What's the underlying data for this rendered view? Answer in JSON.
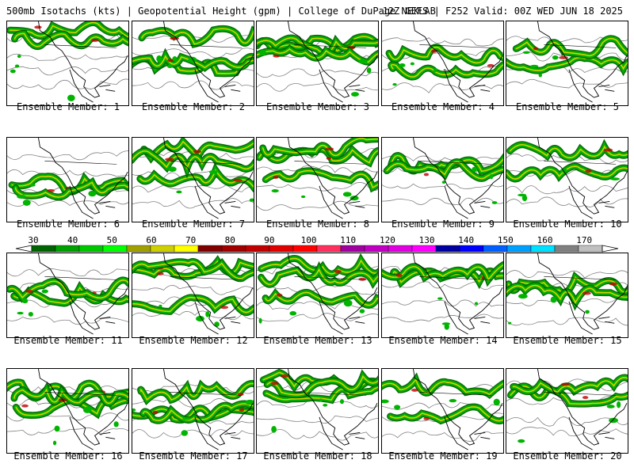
{
  "header": {
    "left": "500mb Isotachs (kts) | Geopotential Height (gpm) | College of DuPage NEXLAB",
    "right": "12Z GEFS | F252 Valid: 00Z WED JUN 18 2025"
  },
  "members": [
    {
      "caption": "Ensemble Member: 1"
    },
    {
      "caption": "Ensemble Member: 2"
    },
    {
      "caption": "Ensemble Member: 3"
    },
    {
      "caption": "Ensemble Member: 4"
    },
    {
      "caption": "Ensemble Member: 5"
    },
    {
      "caption": "Ensemble Member: 6"
    },
    {
      "caption": "Ensemble Member: 7"
    },
    {
      "caption": "Ensemble Member: 8"
    },
    {
      "caption": "Ensemble Member: 9"
    },
    {
      "caption": "Ensemble Member: 10"
    },
    {
      "caption": "Ensemble Member: 11"
    },
    {
      "caption": "Ensemble Member: 12"
    },
    {
      "caption": "Ensemble Member: 13"
    },
    {
      "caption": "Ensemble Member: 14"
    },
    {
      "caption": "Ensemble Member: 15"
    },
    {
      "caption": "Ensemble Member: 16"
    },
    {
      "caption": "Ensemble Member: 17"
    },
    {
      "caption": "Ensemble Member: 18"
    },
    {
      "caption": "Ensemble Member: 19"
    },
    {
      "caption": "Ensemble Member: 20"
    }
  ],
  "colorbar": {
    "labels": [
      "30",
      "40",
      "50",
      "60",
      "70",
      "80",
      "90",
      "100",
      "110",
      "120",
      "130",
      "140",
      "150",
      "160",
      "170"
    ],
    "colors": [
      "#006400",
      "#00a000",
      "#00c800",
      "#00ff00",
      "#a0a000",
      "#d0d000",
      "#ffff00",
      "#800000",
      "#a00000",
      "#c00000",
      "#e00000",
      "#ff0000",
      "#ff3060",
      "#a000a0",
      "#c000c0",
      "#e000e0",
      "#ff00ff",
      "#0000a0",
      "#0000ff",
      "#0060ff",
      "#00a0ff",
      "#00e0ff",
      "#808080",
      "#c0c0c0"
    ]
  },
  "map_style": {
    "jet_dark": "#006400",
    "jet_mid": "#00b400",
    "jet_core": "#ffd700",
    "jet_max": "#c00000",
    "height_contour": "#808080",
    "coastline": "#000000"
  }
}
